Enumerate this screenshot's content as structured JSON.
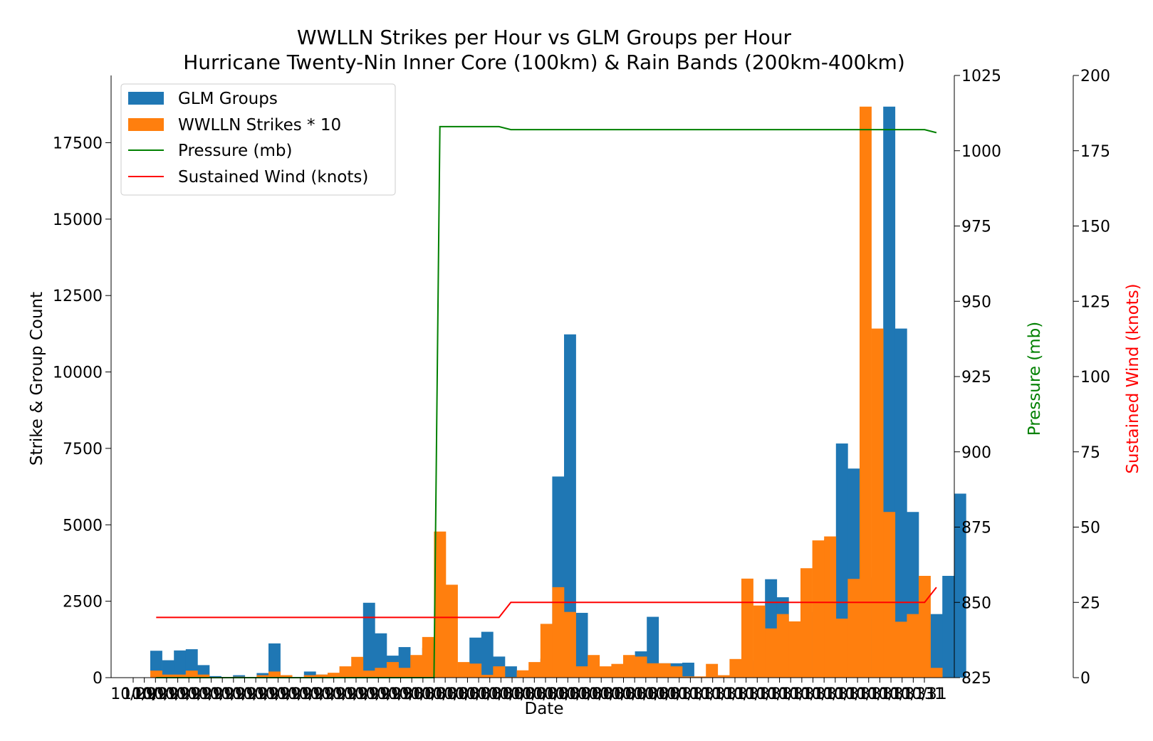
{
  "chart_data": {
    "type": "bar",
    "title": "WWLLN Strikes per Hour vs GLM Groups per Hour",
    "subtitle": "Hurricane Twenty-Nin Inner Core (100km) & Rain Bands (200km-400km)",
    "xlabel": "Date",
    "ylabel": "Strike & Group Count",
    "ylabel_pressure": "Pressure (mb)",
    "ylabel_wind": "Sustained Wind (knots)",
    "ylim": [
      0,
      19700
    ],
    "pressure_ylim": [
      825,
      1025
    ],
    "wind_ylim": [
      0,
      200
    ],
    "yticks": [
      "0",
      "2500",
      "5000",
      "7500",
      "10000",
      "12500",
      "15000",
      "17500"
    ],
    "pressure_ticks": [
      "825",
      "850",
      "875",
      "900",
      "925",
      "950",
      "975",
      "1000",
      "1025"
    ],
    "wind_ticks": [
      "0",
      "25",
      "50",
      "75",
      "100",
      "125",
      "150",
      "175",
      "200"
    ],
    "x_tick_label_left": "10/",
    "x_tick_label_right": "31",
    "x_tick_labels": [
      "10/29",
      "10/29",
      "10/29",
      "10/29",
      "10/29",
      "10/29",
      "10/29",
      "10/29",
      "10/29",
      "10/29",
      "10/29",
      "10/29",
      "10/29",
      "10/29",
      "10/29",
      "10/29",
      "10/29",
      "10/29",
      "10/29",
      "10/29",
      "10/29",
      "10/29",
      "10/29",
      "10/29",
      "10/30",
      "10/30",
      "10/30",
      "10/30",
      "10/30",
      "10/30",
      "10/30",
      "10/30",
      "10/30",
      "10/30",
      "10/30",
      "10/30",
      "10/30",
      "10/30",
      "10/30",
      "10/30",
      "10/30",
      "10/30",
      "10/30",
      "10/30",
      "10/30",
      "10/30",
      "10/30",
      "10/30",
      "10/31",
      "10/31",
      "10/31",
      "10/31",
      "10/31",
      "10/31",
      "10/31",
      "10/31",
      "10/31",
      "10/31",
      "10/31",
      "10/31",
      "10/31",
      "10/31",
      "10/31",
      "10/31",
      "10/31",
      "10/31",
      "10/31",
      "10/31",
      "10/31",
      "10/31",
      "10/31",
      "10/31"
    ],
    "legend_position": "top-left",
    "grid": false,
    "colors": {
      "glm": "#1f77b4",
      "wwlln": "#ff7f0e",
      "pressure": "#008000",
      "wind": "#ff0000"
    },
    "series": [
      {
        "name": "GLM Groups",
        "values": [
          880,
          570,
          890,
          930,
          410,
          50,
          20,
          80,
          0,
          150,
          1120,
          80,
          0,
          200,
          100,
          130,
          0,
          0,
          2450,
          1450,
          720,
          1000,
          690,
          970,
          1200,
          0,
          0,
          1310,
          1500,
          690,
          370,
          50,
          190,
          620,
          6580,
          11230,
          2120,
          0,
          0,
          0,
          0,
          860,
          1990,
          470,
          470,
          490,
          0,
          0,
          0,
          0,
          0,
          570,
          3220,
          2630,
          1580,
          2000,
          2140,
          4520,
          7660,
          6840,
          1930,
          3290,
          18680,
          11420,
          5420,
          1830,
          2080,
          3330,
          6020
        ]
      },
      {
        "name": "WWLLN Strikes * 10",
        "values": [
          230,
          100,
          100,
          230,
          100,
          20,
          0,
          30,
          0,
          80,
          200,
          80,
          0,
          80,
          100,
          160,
          370,
          680,
          230,
          320,
          510,
          320,
          740,
          1330,
          4780,
          3040,
          510,
          460,
          90,
          370,
          20,
          240,
          510,
          1760,
          2960,
          2150,
          370,
          740,
          370,
          450,
          740,
          690,
          470,
          470,
          370,
          40,
          40,
          450,
          80,
          610,
          3240,
          2360,
          1610,
          2080,
          1840,
          3580,
          4490,
          4620,
          1930,
          3230,
          18680,
          11420,
          5420,
          1830,
          2080,
          3330,
          320
        ]
      },
      {
        "name": "Pressure (mb)",
        "x_index": [
          0,
          23.5,
          24,
          29,
          30,
          65,
          66
        ],
        "values": [
          825,
          825,
          1008,
          1008,
          1007,
          1007,
          1006
        ]
      },
      {
        "name": "Sustained Wind (knots)",
        "x_index": [
          0,
          29,
          30,
          65,
          66
        ],
        "values": [
          20,
          20,
          25,
          25,
          30
        ]
      }
    ]
  }
}
